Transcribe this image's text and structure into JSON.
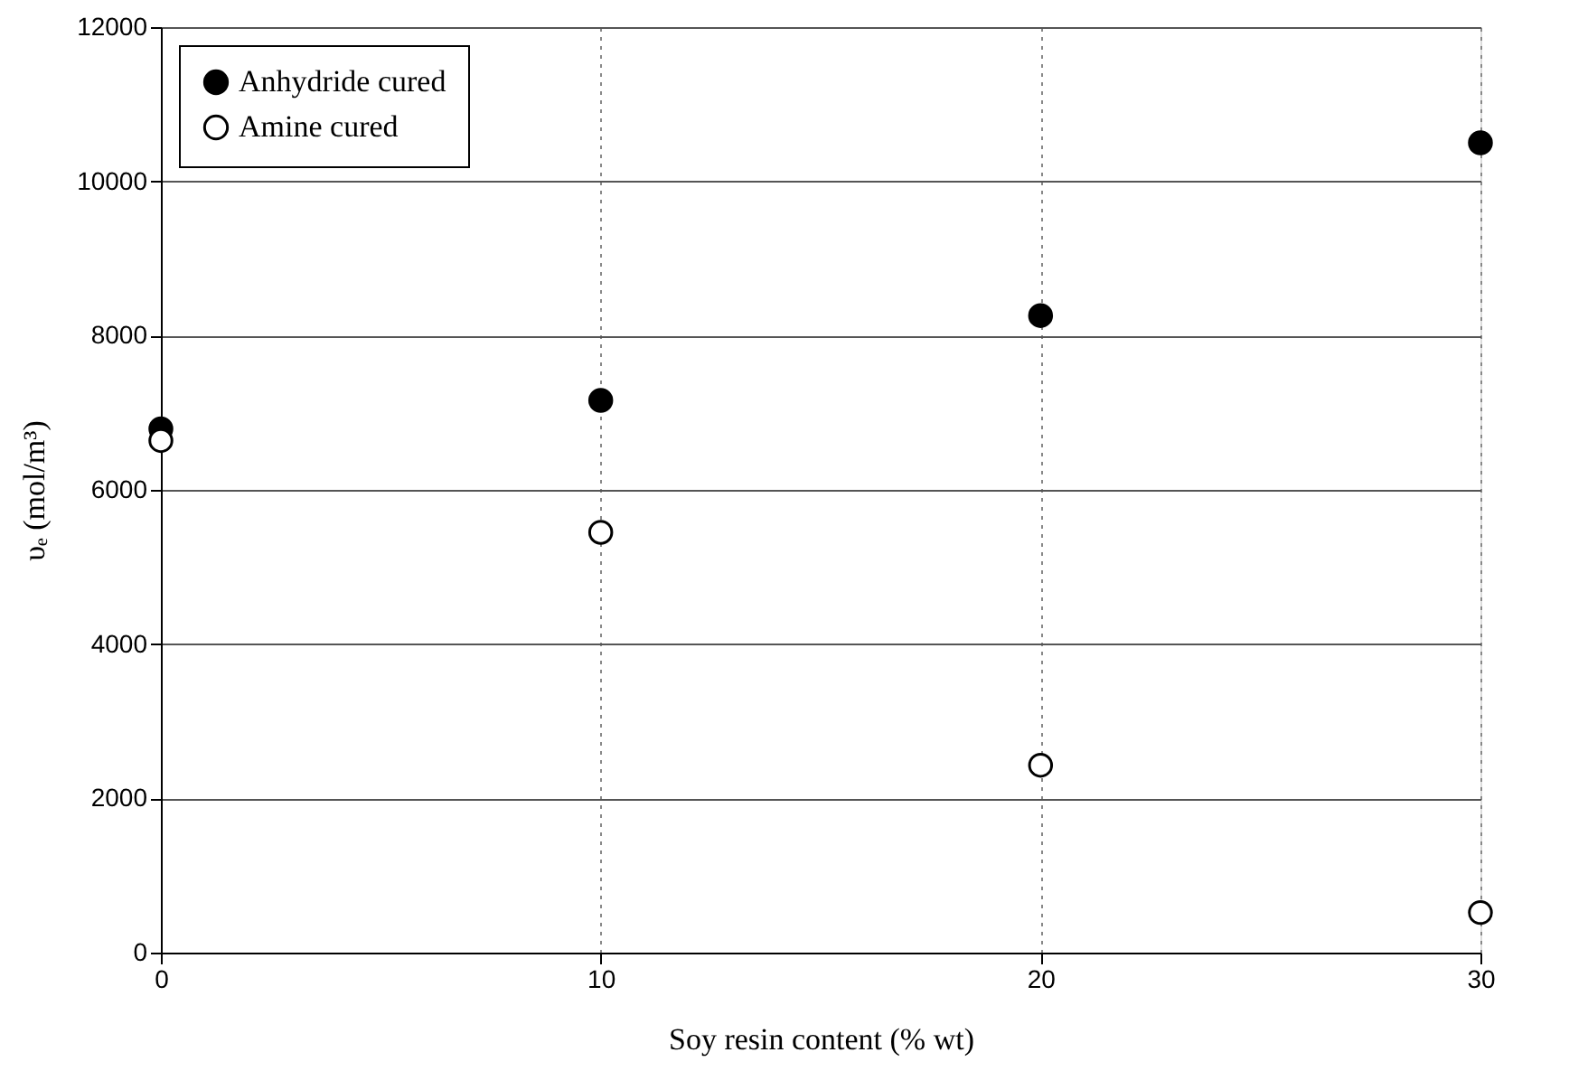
{
  "chart_data": {
    "type": "scatter",
    "xlabel": "Soy resin content (% wt)",
    "ylabel": "υₑ (mol/m³)",
    "x": [
      0,
      10,
      20,
      30
    ],
    "series": [
      {
        "name": "Anhydride cured",
        "color": "#000000",
        "values": [
          6790,
          7160,
          8260,
          10500
        ]
      },
      {
        "name": "Amine cured",
        "color": "#ffffff",
        "values": [
          6640,
          5450,
          2430,
          520
        ]
      }
    ],
    "xlim": [
      0,
      30
    ],
    "xticks": [
      0,
      10,
      20,
      30
    ],
    "ylim": [
      0,
      12000
    ],
    "yticks": [
      0,
      2000,
      4000,
      6000,
      8000,
      10000,
      12000
    ],
    "grid": true,
    "legend": "top left",
    "marker": "circle"
  }
}
